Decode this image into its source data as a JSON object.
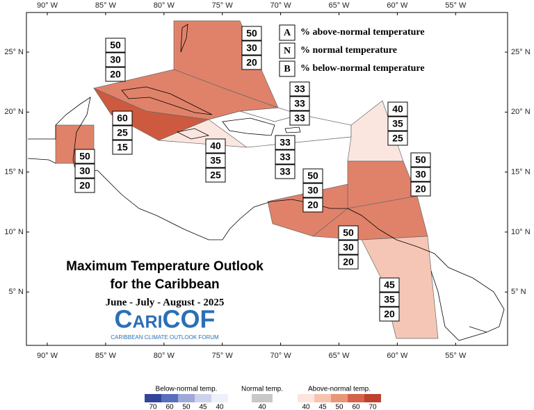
{
  "title_lines": [
    "Maximum Temperature Outlook",
    "for the Caribbean"
  ],
  "subtitle": "June - July - August - 2025",
  "logo": {
    "name": "CariCOF",
    "tagline": "CARIBBEAN CLIMATE OUTLOOK FORUM"
  },
  "lon_labels": [
    "90° W",
    "85° W",
    "80° W",
    "75° W",
    "70° W",
    "65° W",
    "60° W",
    "55° W"
  ],
  "lat_labels": [
    "25° N",
    "20° N",
    "15° N",
    "10° N",
    "5° N"
  ],
  "key": [
    {
      "letter": "A",
      "text": "% above-normal temperature"
    },
    {
      "letter": "N",
      "text": "% normal temperature"
    },
    {
      "letter": "B",
      "text": "% below-normal temperature"
    }
  ],
  "regions": [
    {
      "above": 50,
      "normal": 30,
      "below": 20,
      "color": "#e0826a"
    },
    {
      "above": 50,
      "normal": 30,
      "below": 20,
      "color": "#e0826a"
    },
    {
      "above": 60,
      "normal": 25,
      "below": 15,
      "color": "#cd5a3e"
    },
    {
      "above": 40,
      "normal": 35,
      "below": 25,
      "color": "#fbe6df"
    },
    {
      "above": 50,
      "normal": 30,
      "below": 20,
      "color": "#e0826a"
    },
    {
      "above": 33,
      "normal": 33,
      "below": 33,
      "color": "#ffffff"
    },
    {
      "above": 33,
      "normal": 33,
      "below": 33,
      "color": "#ffffff"
    },
    {
      "above": 40,
      "normal": 35,
      "below": 25,
      "color": "#fbe6df"
    },
    {
      "above": 50,
      "normal": 30,
      "below": 20,
      "color": "#e0826a"
    },
    {
      "above": 50,
      "normal": 30,
      "below": 20,
      "color": "#e0826a"
    },
    {
      "above": 50,
      "normal": 30,
      "below": 20,
      "color": "#e0826a"
    },
    {
      "above": 45,
      "normal": 35,
      "below": 20,
      "color": "#f5c6b6"
    }
  ],
  "colorbar": [
    {
      "title": "Below-normal temp.",
      "colors": [
        "#34449a",
        "#5a6ebe",
        "#9ea9da",
        "#cdd2ec",
        "#eef0fa"
      ],
      "ticks": [
        70,
        60,
        50,
        45,
        40
      ]
    },
    {
      "title": "Normal temp.",
      "colors": [
        "#c8c8c8"
      ],
      "ticks": [
        40
      ]
    },
    {
      "title": "Above-normal temp.",
      "colors": [
        "#fde5de",
        "#f7c3b0",
        "#e8957a",
        "#d4634a",
        "#c0402e"
      ],
      "ticks": [
        40,
        45,
        50,
        60,
        70
      ]
    }
  ]
}
